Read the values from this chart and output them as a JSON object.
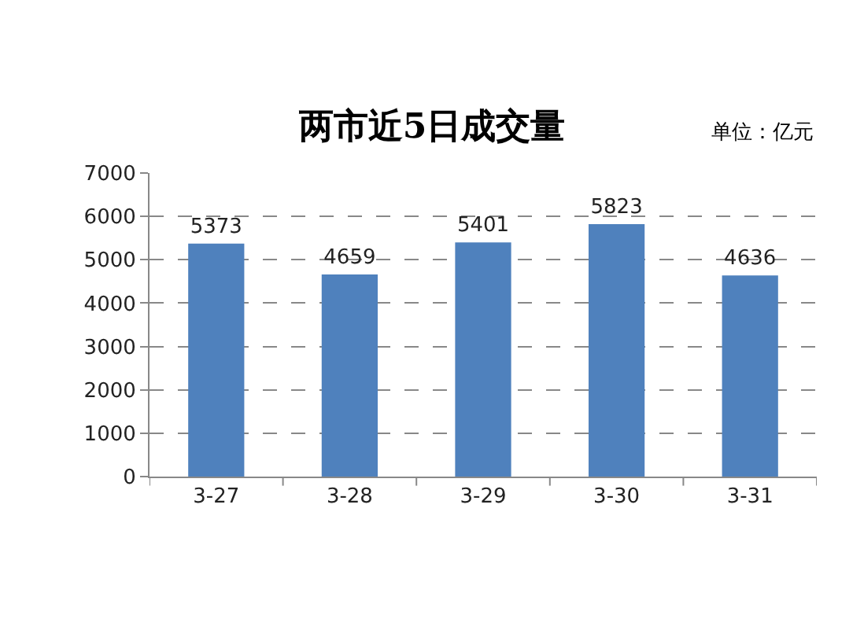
{
  "chart_data": {
    "type": "bar",
    "title": "两市近5日成交量",
    "annotations": [
      "单位：亿元"
    ],
    "categories": [
      "3-27",
      "3-28",
      "3-29",
      "3-30",
      "3-31"
    ],
    "values": [
      5373,
      4659,
      5401,
      5823,
      4636
    ],
    "color": "#4f81bd",
    "ylim": [
      0,
      7000
    ],
    "yticks": [
      0,
      1000,
      2000,
      3000,
      4000,
      5000,
      6000,
      7000
    ],
    "grid": "y",
    "line_style": "dashed",
    "data_labels": true
  }
}
